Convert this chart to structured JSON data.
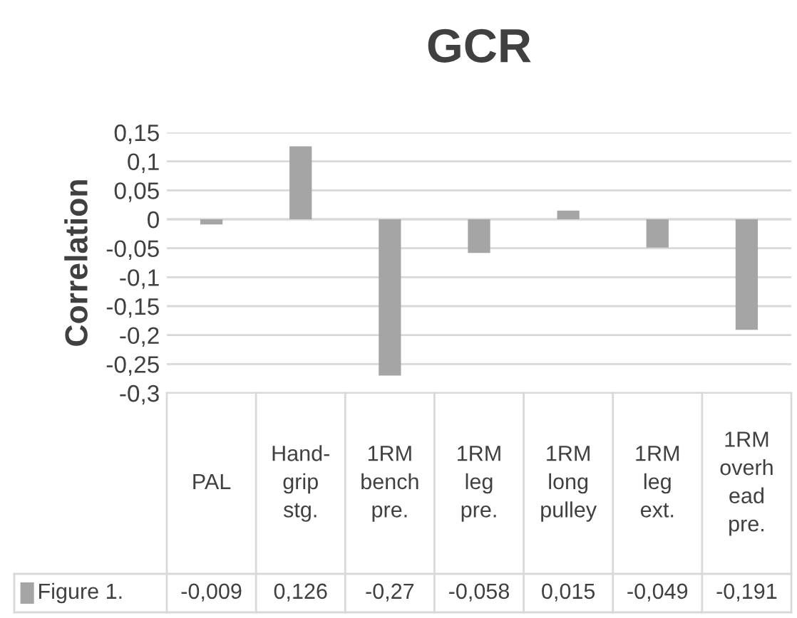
{
  "chart_data": {
    "type": "bar",
    "title": "GCR",
    "ylabel": "Correlation",
    "categories": [
      "PAL",
      "Hand-\ngrip\nstg.",
      "1RM\nbench\npre.",
      "1RM\nleg\npre.",
      "1RM\nlong\npulley",
      "1RM\nleg\next.",
      "1RM\noverh\nead\npre."
    ],
    "series": [
      {
        "name": "Figure 1.",
        "color": "#a5a5a5",
        "values": [
          -0.009,
          0.126,
          -0.27,
          -0.058,
          0.015,
          -0.049,
          -0.191
        ],
        "value_labels": [
          "-0,009",
          "0,126",
          "-0,27",
          "-0,058",
          "0,015",
          "-0,049",
          "-0,191"
        ]
      }
    ],
    "ylim": [
      -0.3,
      0.15
    ],
    "yticks": [
      {
        "value": -0.3,
        "label": "-0,3"
      },
      {
        "value": -0.25,
        "label": "-0,25"
      },
      {
        "value": -0.2,
        "label": "-0,2"
      },
      {
        "value": -0.15,
        "label": "-0,15"
      },
      {
        "value": -0.1,
        "label": "-0,1"
      },
      {
        "value": -0.05,
        "label": "-0,05"
      },
      {
        "value": 0,
        "label": "0"
      },
      {
        "value": 0.05,
        "label": "0,05"
      },
      {
        "value": 0.1,
        "label": "0,1"
      },
      {
        "value": 0.15,
        "label": "0,15"
      }
    ],
    "grid": "y",
    "legend": "bottom"
  }
}
